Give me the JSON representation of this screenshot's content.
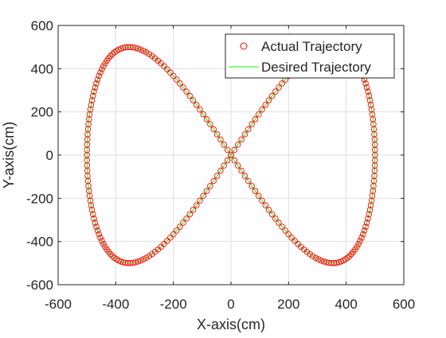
{
  "chart_data": {
    "type": "line",
    "title": "",
    "xlabel": "X-axis(cm)",
    "ylabel": "Y-axis(cm)",
    "xlim": [
      -600,
      600
    ],
    "ylim": [
      -600,
      600
    ],
    "xticks": [
      -600,
      -400,
      -200,
      0,
      200,
      400,
      600
    ],
    "yticks": [
      -600,
      -400,
      -200,
      0,
      200,
      400,
      600
    ],
    "grid": true,
    "legend_position": "top-right",
    "series": [
      {
        "name": "Actual Trajectory",
        "style": "circle-markers",
        "color": "#ff0000",
        "shape": "figure-eight",
        "x_amplitude": 500,
        "y_amplitude": 500,
        "point_count": 260
      },
      {
        "name": "Desired Trajectory",
        "style": "solid-line",
        "color": "#00ff00",
        "shape": "figure-eight",
        "x_amplitude": 500,
        "y_amplitude": 500
      }
    ]
  }
}
